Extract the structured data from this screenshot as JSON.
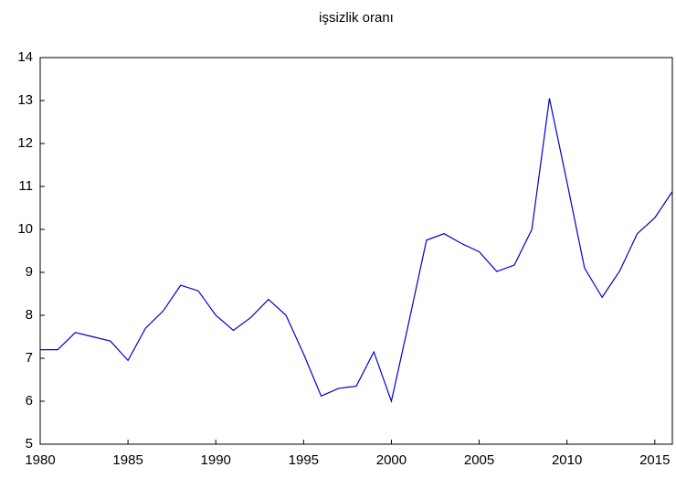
{
  "chart_data": {
    "type": "line",
    "title": "işsizlik oranı",
    "x": [
      1980,
      1981,
      1982,
      1983,
      1984,
      1985,
      1986,
      1987,
      1988,
      1989,
      1990,
      1991,
      1992,
      1993,
      1994,
      1995,
      1996,
      1997,
      1998,
      1999,
      2000,
      2001,
      2002,
      2003,
      2004,
      2005,
      2006,
      2007,
      2008,
      2009,
      2010,
      2011,
      2012,
      2013,
      2014,
      2015,
      2016
    ],
    "series": [
      {
        "color": "#0000cc",
        "values": [
          7.2,
          7.2,
          7.6,
          7.5,
          7.4,
          6.95,
          7.7,
          8.1,
          8.7,
          8.57,
          8.0,
          7.65,
          7.95,
          8.37,
          8.0,
          7.1,
          6.12,
          6.3,
          6.35,
          7.15,
          6.0,
          7.85,
          9.75,
          9.9,
          9.67,
          9.48,
          9.02,
          9.17,
          10.0,
          13.05,
          11.1,
          9.1,
          8.42,
          9.03,
          9.9,
          10.27,
          10.88
        ]
      }
    ],
    "xlim": [
      1980,
      2016
    ],
    "xticks": [
      1980,
      1985,
      1990,
      1995,
      2000,
      2005,
      2010,
      2015
    ],
    "ylim": [
      5,
      14
    ],
    "yticks": [
      5,
      6,
      7,
      8,
      9,
      10,
      11,
      12,
      13,
      14
    ]
  }
}
